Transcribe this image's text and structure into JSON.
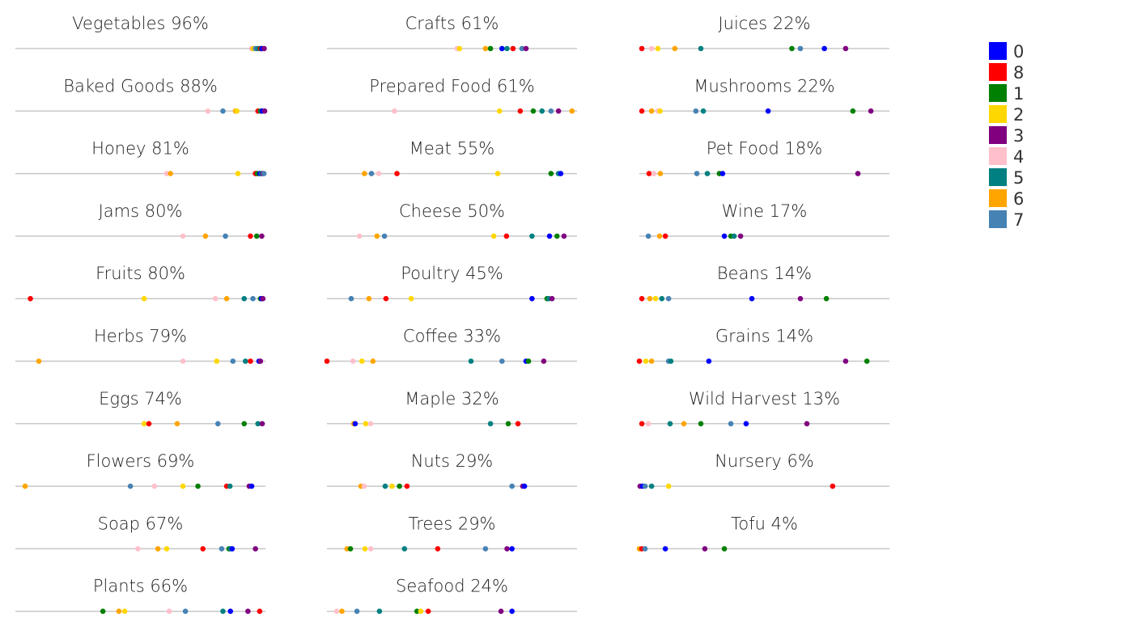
{
  "chart_data": {
    "type": "scatter",
    "subtype": "strip-plot-small-multiples",
    "xlim": [
      0,
      100
    ],
    "legend_position": "top-right",
    "legend": [
      {
        "label": "0",
        "color": "#0000ff"
      },
      {
        "label": "8",
        "color": "#ff0000"
      },
      {
        "label": "1",
        "color": "#008000"
      },
      {
        "label": "2",
        "color": "#ffd700"
      },
      {
        "label": "3",
        "color": "#800080"
      },
      {
        "label": "4",
        "color": "#ffc0cb"
      },
      {
        "label": "5",
        "color": "#008080"
      },
      {
        "label": "6",
        "color": "#ffa500"
      },
      {
        "label": "7",
        "color": "#4682b4"
      }
    ],
    "panels": [
      {
        "title": "Vegetables 96%",
        "points": [
          [
            "4",
            94.5
          ],
          [
            "6",
            95
          ],
          [
            "2",
            95.3
          ],
          [
            "7",
            96
          ],
          [
            "5",
            97
          ],
          [
            "8",
            98
          ],
          [
            "1",
            98.4
          ],
          [
            "0",
            98.6
          ],
          [
            "3",
            99.5
          ]
        ]
      },
      {
        "title": "Baked Goods 88%",
        "points": [
          [
            "4",
            77
          ],
          [
            "7",
            83
          ],
          [
            "6",
            88
          ],
          [
            "2",
            88.6
          ],
          [
            "8",
            97
          ],
          [
            "5",
            98
          ],
          [
            "1",
            98.3
          ],
          [
            "0",
            98.7
          ],
          [
            "3",
            99.7
          ]
        ]
      },
      {
        "title": "Honey 81%",
        "points": [
          [
            "4",
            60.5
          ],
          [
            "6",
            62
          ],
          [
            "2",
            89
          ],
          [
            "8",
            96
          ],
          [
            "1",
            96.8
          ],
          [
            "0",
            97.8
          ],
          [
            "5",
            98.4
          ],
          [
            "3",
            99
          ],
          [
            "7",
            99.4
          ]
        ]
      },
      {
        "title": "Jams 80%",
        "points": [
          [
            "4",
            67
          ],
          [
            "6",
            76
          ],
          [
            "7",
            84
          ],
          [
            "8",
            94
          ],
          [
            "1",
            96.5
          ],
          [
            "3",
            98.5
          ]
        ]
      },
      {
        "title": "Fruits 80%",
        "points": [
          [
            "8",
            6
          ],
          [
            "2",
            51.5
          ],
          [
            "4",
            80
          ],
          [
            "6",
            84.5
          ],
          [
            "5",
            91.5
          ],
          [
            "7",
            95
          ],
          [
            "1",
            98
          ],
          [
            "0",
            98.4
          ],
          [
            "3",
            99
          ]
        ]
      },
      {
        "title": "Herbs 79%",
        "points": [
          [
            "6",
            9.4
          ],
          [
            "4",
            67
          ],
          [
            "2",
            80.5
          ],
          [
            "7",
            87
          ],
          [
            "5",
            92
          ],
          [
            "8",
            94
          ],
          [
            "0",
            97.4
          ],
          [
            "3",
            98
          ]
        ]
      },
      {
        "title": "Eggs 74%",
        "points": [
          [
            "2",
            51.5
          ],
          [
            "8",
            53.4
          ],
          [
            "6",
            64.7
          ],
          [
            "7",
            81
          ],
          [
            "1",
            91.5
          ],
          [
            "5",
            97
          ],
          [
            "3",
            98.7
          ]
        ]
      },
      {
        "title": "Flowers 69%",
        "points": [
          [
            "6",
            3.9
          ],
          [
            "7",
            46
          ],
          [
            "4",
            55.6
          ],
          [
            "2",
            67
          ],
          [
            "1",
            73
          ],
          [
            "8",
            84.5
          ],
          [
            "5",
            85.8
          ],
          [
            "3",
            93.5
          ],
          [
            "0",
            94.5
          ]
        ]
      },
      {
        "title": "Soap 67%",
        "points": [
          [
            "4",
            49
          ],
          [
            "6",
            57
          ],
          [
            "2",
            60.5
          ],
          [
            "8",
            75
          ],
          [
            "7",
            82.5
          ],
          [
            "1",
            85.4
          ],
          [
            "5",
            86
          ],
          [
            "0",
            86.7
          ],
          [
            "3",
            96
          ]
        ]
      },
      {
        "title": "Plants 66%",
        "points": [
          [
            "1",
            35
          ],
          [
            "6",
            41.4
          ],
          [
            "2",
            43.7
          ],
          [
            "4",
            61.5
          ],
          [
            "7",
            68
          ],
          [
            "5",
            83
          ],
          [
            "0",
            86
          ],
          [
            "3",
            93
          ],
          [
            "8",
            97.7
          ]
        ]
      },
      {
        "title": "Crafts 61%",
        "points": [
          [
            "4",
            52
          ],
          [
            "2",
            53
          ],
          [
            "6",
            63.4
          ],
          [
            "1",
            65.4
          ],
          [
            "0",
            70
          ],
          [
            "5",
            72
          ],
          [
            "8",
            74.4
          ],
          [
            "7",
            78
          ],
          [
            "3",
            79.6
          ]
        ]
      },
      {
        "title": "Prepared Food 61%",
        "points": [
          [
            "4",
            27
          ],
          [
            "2",
            69
          ],
          [
            "8",
            77.3
          ],
          [
            "1",
            82.5
          ],
          [
            "5",
            86
          ],
          [
            "7",
            89.6
          ],
          [
            "3",
            92.6
          ],
          [
            "6",
            98
          ]
        ]
      },
      {
        "title": "Meat 55%",
        "points": [
          [
            "6",
            15
          ],
          [
            "7",
            17.8
          ],
          [
            "4",
            20.7
          ],
          [
            "8",
            28
          ],
          [
            "2",
            68.3
          ],
          [
            "1",
            89.6
          ],
          [
            "5",
            92.6
          ],
          [
            "0",
            93.5
          ]
        ]
      },
      {
        "title": "Cheese 50%",
        "points": [
          [
            "4",
            13
          ],
          [
            "6",
            20
          ],
          [
            "7",
            23
          ],
          [
            "2",
            66.7
          ],
          [
            "8",
            71.8
          ],
          [
            "5",
            82
          ],
          [
            "0",
            89
          ],
          [
            "1",
            92
          ],
          [
            "3",
            94.8
          ]
        ]
      },
      {
        "title": "Poultry 45%",
        "points": [
          [
            "7",
            9.7
          ],
          [
            "6",
            16.8
          ],
          [
            "8",
            23.6
          ],
          [
            "2",
            33.7
          ],
          [
            "0",
            82
          ],
          [
            "1",
            88
          ],
          [
            "5",
            88.7
          ],
          [
            "3",
            90
          ]
        ]
      },
      {
        "title": "Coffee 33%",
        "points": [
          [
            "8",
            0
          ],
          [
            "4",
            10.4
          ],
          [
            "2",
            14
          ],
          [
            "6",
            18.4
          ],
          [
            "5",
            57.6
          ],
          [
            "7",
            70
          ],
          [
            "0",
            79.6
          ],
          [
            "1",
            80.6
          ],
          [
            "3",
            86.7
          ]
        ]
      },
      {
        "title": "Maple 32%",
        "points": [
          [
            "6",
            10.7
          ],
          [
            "0",
            11.3
          ],
          [
            "2",
            15.5
          ],
          [
            "4",
            17.5
          ],
          [
            "5",
            65.4
          ],
          [
            "1",
            72.5
          ],
          [
            "8",
            76.4
          ]
        ]
      },
      {
        "title": "Nuts 29%",
        "points": [
          [
            "6",
            13.6
          ],
          [
            "4",
            14.9
          ],
          [
            "5",
            23.3
          ],
          [
            "2",
            26
          ],
          [
            "1",
            29
          ],
          [
            "8",
            32
          ],
          [
            "7",
            74
          ],
          [
            "3",
            78.3
          ],
          [
            "0",
            79
          ]
        ]
      },
      {
        "title": "Trees 29%",
        "points": [
          [
            "6",
            8
          ],
          [
            "1",
            9.4
          ],
          [
            "2",
            15.2
          ],
          [
            "4",
            17.5
          ],
          [
            "5",
            31
          ],
          [
            "8",
            44.3
          ],
          [
            "7",
            63.4
          ],
          [
            "3",
            72
          ],
          [
            "0",
            74
          ]
        ]
      },
      {
        "title": "Seafood 24%",
        "points": [
          [
            "4",
            3.9
          ],
          [
            "6",
            6
          ],
          [
            "7",
            12
          ],
          [
            "5",
            21
          ],
          [
            "1",
            36
          ],
          [
            "2",
            37.5
          ],
          [
            "8",
            40.5
          ],
          [
            "3",
            69.6
          ],
          [
            "0",
            74
          ]
        ]
      },
      {
        "title": "Juices 22%",
        "points": [
          [
            "8",
            1
          ],
          [
            "4",
            4.9
          ],
          [
            "2",
            7.4
          ],
          [
            "6",
            14.2
          ],
          [
            "5",
            24.6
          ],
          [
            "1",
            61
          ],
          [
            "7",
            64.4
          ],
          [
            "0",
            74
          ],
          [
            "3",
            82.5
          ]
        ]
      },
      {
        "title": "Mushrooms 22%",
        "points": [
          [
            "8",
            1
          ],
          [
            "6",
            4.9
          ],
          [
            "4",
            7.4
          ],
          [
            "2",
            8.3
          ],
          [
            "7",
            22.6
          ],
          [
            "5",
            25.6
          ],
          [
            "0",
            51.5
          ],
          [
            "1",
            85.4
          ],
          [
            "3",
            92.6
          ]
        ]
      },
      {
        "title": "Pet Food 18%",
        "points": [
          [
            "8",
            3.9
          ],
          [
            "4",
            5.8
          ],
          [
            "6",
            8.4
          ],
          [
            "7",
            23
          ],
          [
            "5",
            27.2
          ],
          [
            "1",
            32
          ],
          [
            "0",
            33.3
          ],
          [
            "3",
            87.4
          ]
        ]
      },
      {
        "title": "Wine 17%",
        "points": [
          [
            "7",
            3.6
          ],
          [
            "6",
            8.1
          ],
          [
            "8",
            10.4
          ],
          [
            "0",
            34
          ],
          [
            "1",
            36.6
          ],
          [
            "5",
            37.9
          ],
          [
            "3",
            40.5
          ]
        ]
      },
      {
        "title": "Beans 14%",
        "points": [
          [
            "8",
            1
          ],
          [
            "6",
            4.2
          ],
          [
            "2",
            6.5
          ],
          [
            "5",
            9
          ],
          [
            "7",
            11.7
          ],
          [
            "0",
            45
          ],
          [
            "3",
            64.4
          ],
          [
            "1",
            74.8
          ]
        ]
      },
      {
        "title": "Grains 14%",
        "points": [
          [
            "8",
            0
          ],
          [
            "2",
            2.6
          ],
          [
            "6",
            4.9
          ],
          [
            "7",
            11.7
          ],
          [
            "5",
            12.6
          ],
          [
            "0",
            27.8
          ],
          [
            "3",
            82.5
          ],
          [
            "1",
            91
          ]
        ]
      },
      {
        "title": "Wild Harvest 13%",
        "points": [
          [
            "8",
            1
          ],
          [
            "4",
            3.6
          ],
          [
            "5",
            12.3
          ],
          [
            "6",
            17.8
          ],
          [
            "1",
            24.6
          ],
          [
            "7",
            36.6
          ],
          [
            "0",
            42.7
          ],
          [
            "3",
            67
          ]
        ]
      },
      {
        "title": "Nursery 6%",
        "points": [
          [
            "3",
            0.3
          ],
          [
            "0",
            1.3
          ],
          [
            "7",
            2.3
          ],
          [
            "5",
            4.9
          ],
          [
            "2",
            11.7
          ],
          [
            "8",
            77.3
          ]
        ]
      },
      {
        "title": "Tofu 4%",
        "points": [
          [
            "6",
            0
          ],
          [
            "8",
            1
          ],
          [
            "7",
            2.3
          ],
          [
            "0",
            10.4
          ],
          [
            "3",
            26.2
          ],
          [
            "1",
            34
          ]
        ]
      }
    ]
  }
}
